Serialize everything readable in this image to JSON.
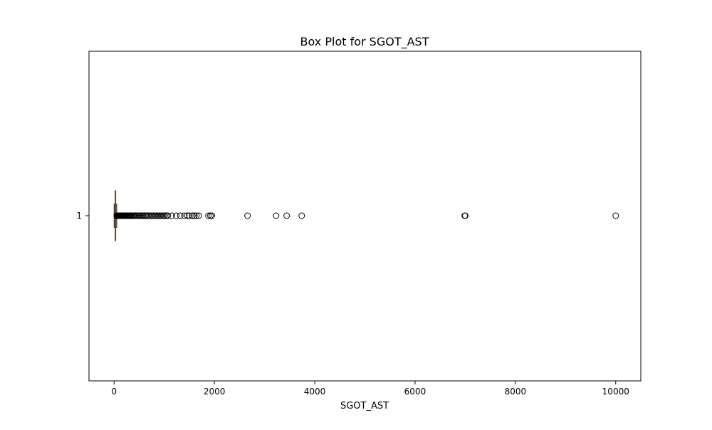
{
  "chart_data": {
    "type": "boxplot",
    "orientation": "horizontal",
    "title": "Box Plot for SGOT_AST",
    "xlabel": "SGOT_AST",
    "ylabel": "",
    "xlim": [
      -500,
      10500
    ],
    "x_ticks": [
      0,
      2000,
      4000,
      6000,
      8000,
      10000
    ],
    "x_tick_labels": [
      "0",
      "2000",
      "4000",
      "6000",
      "8000",
      "10000"
    ],
    "y_tick_labels": [
      "1"
    ],
    "grid": false,
    "box": {
      "category": "1",
      "whisker_low": 1,
      "q1": 19,
      "median": 25,
      "q3": 32,
      "whisker_high": 52,
      "box_color": "#000000",
      "median_color": "#ff7f0e"
    },
    "outliers": [
      53,
      56,
      59,
      62,
      66,
      70,
      75,
      80,
      86,
      92,
      98,
      105,
      112,
      120,
      130,
      140,
      150,
      160,
      172,
      185,
      198,
      210,
      225,
      240,
      256,
      272,
      290,
      308,
      325,
      345,
      365,
      385,
      405,
      425,
      450,
      475,
      500,
      525,
      550,
      575,
      600,
      625,
      650,
      680,
      710,
      740,
      770,
      800,
      830,
      860,
      890,
      920,
      950,
      980,
      1010,
      1040,
      1070,
      1150,
      1240,
      1320,
      1400,
      1460,
      1500,
      1560,
      1600,
      1640,
      1690,
      1880,
      1920,
      1950,
      2660,
      3230,
      3440,
      3740,
      6990,
      7000,
      10000
    ],
    "outlier_marker": "circle",
    "outlier_color": "#000000"
  }
}
